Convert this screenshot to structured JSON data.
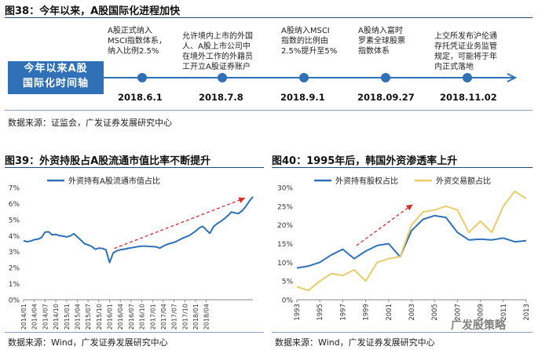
{
  "fig38": {
    "title": "图38：今年以来，A股国际化进程加快",
    "axis_label_line1": "今年以来A股",
    "axis_label_line2": "国际化时间轴",
    "events": [
      {
        "date": "2018.6.1",
        "lines": [
          "A股正式纳入",
          "MSCI指数体系，",
          "纳入比例2.5%"
        ]
      },
      {
        "date": "2018.7.8",
        "lines": [
          "允许境内上市的外国",
          "人、A股上市公司中",
          "在境外工作的外籍员",
          "工开立A股证券账户"
        ]
      },
      {
        "date": "2018.9.1",
        "lines": [
          "A股纳入MSCI",
          "指数的比例由",
          "2.5%提升至5%"
        ]
      },
      {
        "date": "2018.09.27",
        "lines": [
          "A股纳入富时",
          "罗素全球股票",
          "指数体系"
        ]
      },
      {
        "date": "2018.11.02",
        "lines": [
          "上交所发布沪伦通",
          "存托凭证业务监管",
          "规定，可能将于年",
          "内正式落地"
        ]
      }
    ],
    "source": "数据来源：证监会，广发证券发展研究中心"
  },
  "fig39": {
    "title": "图39：外资持股占A股流通市值比率不断提升",
    "source": "数据来源：Wind，广发证券发展研究中心"
  },
  "fig40": {
    "title": "图40：1995年后，韩国外资渗透率上升",
    "source": "数据来源：Wind，广发证券发展研究中心"
  },
  "watermark": "广发股策略",
  "colors": {
    "blue": "#2f70b6",
    "gold": "#e8cc6a",
    "red": "#d62c2c",
    "title_rule": "#2a4a7c"
  },
  "chart_data": [
    {
      "type": "line",
      "id": "fig39",
      "series": [
        {
          "name": "外资持有A股流通市值占比",
          "color": "#2f70b6",
          "values": [
            3.68,
            3.62,
            3.66,
            3.75,
            3.78,
            3.88,
            4.22,
            4.24,
            4.05,
            4.08,
            4.0,
            3.97,
            3.92,
            3.98,
            4.12,
            3.92,
            3.72,
            3.5,
            3.42,
            3.33,
            3.15,
            3.22,
            3.2,
            3.12,
            2.32,
            2.92,
            3.05,
            3.12,
            3.15,
            3.2,
            3.24,
            3.28,
            3.32,
            3.35,
            3.35,
            3.33,
            3.32,
            3.3,
            3.22,
            3.35,
            3.45,
            3.52,
            3.58,
            3.68,
            3.8,
            3.9,
            3.98,
            4.12,
            4.28,
            4.48,
            4.58,
            4.35,
            4.15,
            4.55,
            4.75,
            4.88,
            5.05,
            5.25,
            5.48,
            5.42,
            5.38,
            5.55,
            5.82,
            6.15,
            6.42
          ]
        }
      ],
      "x_tick_labels": [
        "2014/01",
        "2014/04",
        "2014/07",
        "2014/10",
        "2015/01",
        "2015/04",
        "2015/07",
        "2015/10",
        "2016/01",
        "2016/04",
        "2016/07",
        "2016/10",
        "2017/01",
        "2017/04",
        "2017/07",
        "2017/10",
        "2018/01",
        "2018/04"
      ],
      "ylim": [
        0,
        7
      ],
      "y_ticks": [
        0,
        1,
        2,
        3,
        4,
        5,
        6,
        7
      ],
      "y_tick_labels": [
        "0%",
        "1%",
        "2%",
        "3%",
        "4%",
        "5%",
        "6%",
        "7%"
      ],
      "annotation": "red dashed trend arrow from 2016/01 to 2018/06"
    },
    {
      "type": "line",
      "id": "fig40",
      "series": [
        {
          "name": "外资持有股权占比",
          "color": "#2f70b6",
          "x": [
            1993,
            1994,
            1995,
            1996,
            1997,
            1998,
            1999,
            2000,
            2001,
            2002,
            2003,
            2004,
            2005,
            2006,
            2007,
            2008,
            2009,
            2010,
            2011,
            2012,
            2013
          ],
          "values": [
            8.5,
            9.0,
            10.0,
            12.0,
            13.5,
            11.0,
            13.0,
            14.5,
            15.0,
            11.5,
            18.5,
            21.5,
            22.5,
            22.0,
            18.0,
            16.0,
            16.2,
            16.0,
            16.5,
            15.5,
            15.8
          ]
        },
        {
          "name": "外资交易额占比",
          "color": "#e8cc6a",
          "x": [
            1993,
            1994,
            1995,
            1996,
            1997,
            1998,
            1999,
            2000,
            2001,
            2002,
            2003,
            2004,
            2005,
            2006,
            2007,
            2008,
            2009,
            2010,
            2011,
            2012,
            2013
          ],
          "values": [
            3.5,
            2.5,
            5.0,
            7.0,
            6.5,
            8.0,
            5.0,
            10.0,
            11.0,
            11.5,
            20.0,
            23.5,
            24.0,
            25.0,
            24.0,
            18.0,
            21.0,
            18.0,
            25.0,
            29.0,
            27.0
          ]
        }
      ],
      "x_tick_labels": [
        "1993",
        "1995",
        "1997",
        "1999",
        "2001",
        "2003",
        "2005",
        "2007",
        "2009",
        "2011",
        "2013"
      ],
      "ylim": [
        0,
        30
      ],
      "y_ticks": [
        0,
        5,
        10,
        15,
        20,
        25,
        30
      ],
      "y_tick_labels": [
        "0%",
        "5%",
        "10%",
        "15%",
        "20%",
        "25%",
        "30%"
      ],
      "annotation": "red dashed trend arrow from 1998 to 2003"
    }
  ]
}
